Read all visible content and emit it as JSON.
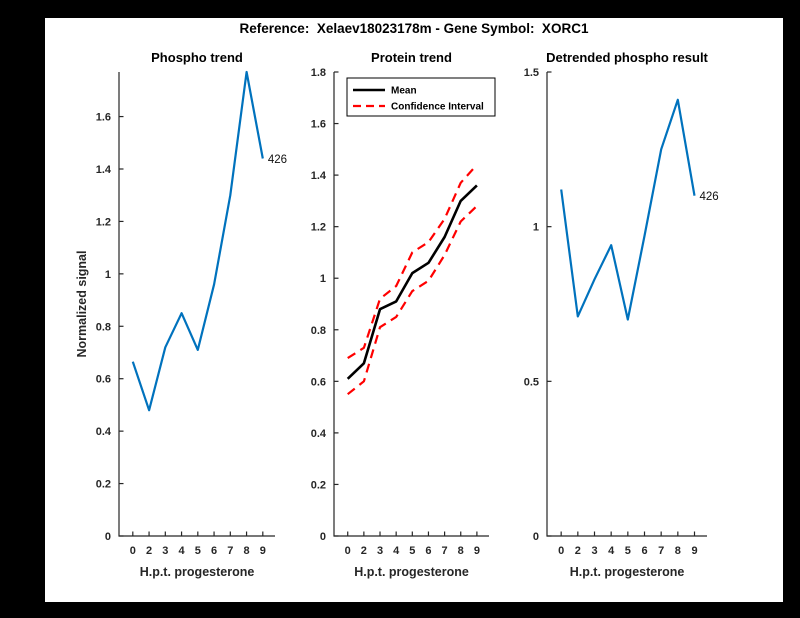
{
  "page": {
    "background": "#000000"
  },
  "figure": {
    "title": "Reference:  Xelaev18023178m - Gene Symbol:  XORC1",
    "background": "#ffffff"
  },
  "colors": {
    "line_blue": "#0072bd",
    "ci_red": "#ff0000",
    "mean_black": "#000000",
    "axis": "#262626"
  },
  "chart_data": [
    {
      "type": "line",
      "title": "Phospho trend",
      "xlabel": "H.p.t. progesterone",
      "ylabel": "Normalized signal",
      "x_values": [
        0,
        2,
        3,
        4,
        5,
        6,
        7,
        8,
        9
      ],
      "x_tick_labels": [
        "0",
        "2",
        "3",
        "4",
        "5",
        "6",
        "7",
        "8",
        "9"
      ],
      "x_spacing": "categorical",
      "ylim": [
        0,
        1.77
      ],
      "yticks": [
        0,
        0.2,
        0.4,
        0.6,
        0.8,
        1,
        1.2,
        1.4,
        1.6
      ],
      "grid": false,
      "legend": null,
      "end_label": "426",
      "series": [
        {
          "name": "phospho-signal",
          "color": "#0072bd",
          "style": "solid",
          "line_width": 2.2,
          "values": [
            0.665,
            0.48,
            0.72,
            0.85,
            0.71,
            0.96,
            1.3,
            1.77,
            1.44
          ]
        }
      ]
    },
    {
      "type": "line",
      "title": "Protein trend",
      "xlabel": "H.p.t. progesterone",
      "ylabel": null,
      "x_values": [
        0,
        2,
        3,
        4,
        5,
        6,
        7,
        8,
        9
      ],
      "x_tick_labels": [
        "0",
        "2",
        "3",
        "4",
        "5",
        "6",
        "7",
        "8",
        "9"
      ],
      "x_spacing": "categorical",
      "ylim": [
        0,
        1.8
      ],
      "yticks": [
        0,
        0.2,
        0.4,
        0.6,
        0.8,
        1,
        1.2,
        1.4,
        1.6,
        1.8
      ],
      "grid": false,
      "legend": {
        "position": "northwest",
        "entries": [
          {
            "label": "Mean",
            "color": "#000000",
            "style": "solid"
          },
          {
            "label": "Confidence Interval",
            "color": "#ff0000",
            "style": "dashed"
          }
        ]
      },
      "end_label": null,
      "series": [
        {
          "name": "mean",
          "color": "#000000",
          "style": "solid",
          "line_width": 2.6,
          "values": [
            0.61,
            0.67,
            0.88,
            0.91,
            1.02,
            1.06,
            1.16,
            1.3,
            1.36
          ]
        },
        {
          "name": "confidence-upper",
          "color": "#ff0000",
          "style": "dashed",
          "line_width": 2.2,
          "values": [
            0.69,
            0.73,
            0.92,
            0.97,
            1.1,
            1.14,
            1.23,
            1.37,
            1.44
          ]
        },
        {
          "name": "confidence-lower",
          "color": "#ff0000",
          "style": "dashed",
          "line_width": 2.2,
          "values": [
            0.55,
            0.6,
            0.81,
            0.85,
            0.95,
            0.99,
            1.09,
            1.22,
            1.28
          ]
        }
      ]
    },
    {
      "type": "line",
      "title": "Detrended phospho result",
      "xlabel": "H.p.t. progesterone",
      "ylabel": null,
      "x_values": [
        0,
        2,
        3,
        4,
        5,
        6,
        7,
        8,
        9
      ],
      "x_tick_labels": [
        "0",
        "2",
        "3",
        "4",
        "5",
        "6",
        "7",
        "8",
        "9"
      ],
      "x_spacing": "categorical",
      "ylim": [
        0,
        1.5
      ],
      "yticks": [
        0,
        0.5,
        1,
        1.5
      ],
      "grid": false,
      "legend": null,
      "end_label": "426",
      "series": [
        {
          "name": "detrended-phospho",
          "color": "#0072bd",
          "style": "solid",
          "line_width": 2.2,
          "values": [
            1.12,
            0.71,
            0.83,
            0.94,
            0.7,
            0.97,
            1.25,
            1.41,
            1.1
          ]
        }
      ]
    }
  ]
}
